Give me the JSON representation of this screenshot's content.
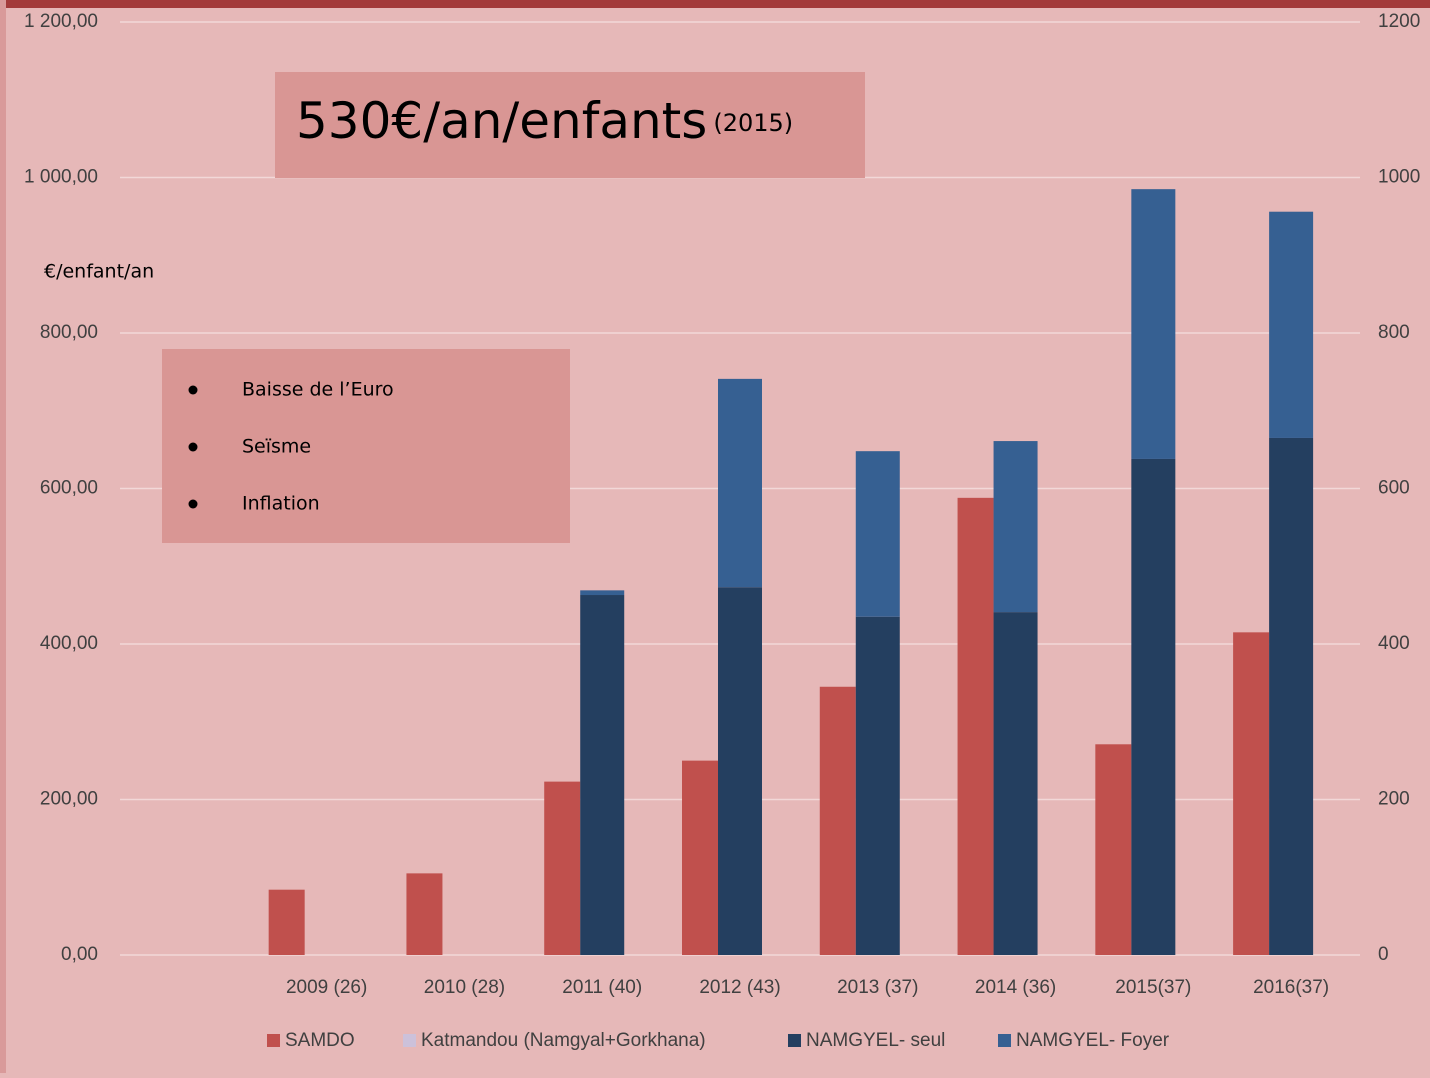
{
  "chart_data": {
    "type": "bar",
    "ylabel": "€/enfant/an",
    "headline": {
      "text": "530€/an/enfants",
      "note": "(2015)"
    },
    "bullets": [
      "Baisse de l’Euro",
      "Seïsme",
      "Inflation"
    ],
    "categories": [
      null,
      "2009 (26)",
      "2010 (28)",
      "2011 (40)",
      "2012 (43)",
      "2013 (37)",
      "2014 (36)",
      "2015(37)",
      "2016(37)"
    ],
    "series": [
      {
        "name": "SAMDO",
        "color": "#c0504d",
        "stack": "a",
        "values": [
          null,
          84,
          105,
          223,
          250,
          345,
          588,
          271,
          415
        ]
      },
      {
        "name": "Katmandou (Namgyal+Gorkhana)",
        "color": "#ccc1da",
        "stack": "k",
        "values": [
          null,
          null,
          null,
          null,
          null,
          null,
          null,
          null,
          null
        ]
      },
      {
        "name": "NAMGYEL- seul",
        "color": "#243f60",
        "stack": "b",
        "values": [
          null,
          null,
          null,
          463,
          473,
          435,
          441,
          638,
          665
        ]
      },
      {
        "name": "NAMGYEL- Foyer",
        "color": "#366092",
        "stack": "b",
        "values": [
          null,
          null,
          null,
          6,
          268,
          213,
          220,
          347,
          291
        ]
      }
    ],
    "ylim": [
      0,
      1200
    ],
    "yticks": [
      {
        "value": 0,
        "label": "0,00"
      },
      {
        "value": 200,
        "label": "200,00"
      },
      {
        "value": 400,
        "label": "400,00"
      },
      {
        "value": 600,
        "label": "600,00"
      },
      {
        "value": 800,
        "label": "800,00"
      },
      {
        "value": 1000,
        "label": "1 000,00"
      },
      {
        "value": 1200,
        "label": "1 200,00"
      }
    ],
    "y2lim": [
      0,
      1200
    ],
    "y2ticks": [
      0,
      200,
      400,
      600,
      800,
      1000,
      1200
    ],
    "grid": true
  }
}
